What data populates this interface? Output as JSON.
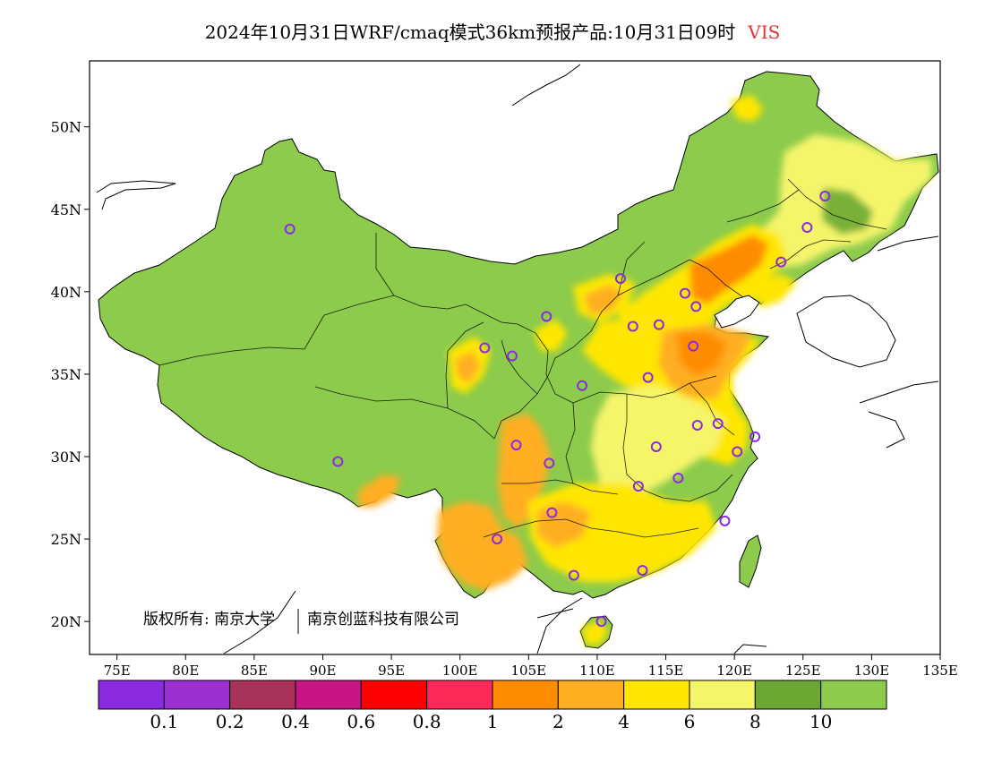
{
  "title": {
    "main": "2024年10月31日WRF/cmaq模式36km预报产品:10月31日09时",
    "variable": "VIS"
  },
  "map": {
    "lon_range": [
      73,
      135
    ],
    "lat_range": [
      18,
      54
    ],
    "lon_ticks": [
      {
        "value": 75,
        "label": "75E"
      },
      {
        "value": 80,
        "label": "80E"
      },
      {
        "value": 85,
        "label": "85E"
      },
      {
        "value": 90,
        "label": "90E"
      },
      {
        "value": 95,
        "label": "95E"
      },
      {
        "value": 100,
        "label": "100E"
      },
      {
        "value": 105,
        "label": "105E"
      },
      {
        "value": 110,
        "label": "110E"
      },
      {
        "value": 115,
        "label": "115E"
      },
      {
        "value": 120,
        "label": "120E"
      },
      {
        "value": 125,
        "label": "125E"
      },
      {
        "value": 130,
        "label": "130E"
      },
      {
        "value": 135,
        "label": "135E"
      }
    ],
    "lat_ticks": [
      {
        "value": 20,
        "label": "20N"
      },
      {
        "value": 25,
        "label": "25N"
      },
      {
        "value": 30,
        "label": "30N"
      },
      {
        "value": 35,
        "label": "35N"
      },
      {
        "value": 40,
        "label": "40N"
      },
      {
        "value": 45,
        "label": "45N"
      },
      {
        "value": 50,
        "label": "50N"
      }
    ],
    "copyright": "版权所有: 南京大学",
    "copyright_partner": "南京创蓝科技有限公司",
    "stations": [
      {
        "lon": 87.6,
        "lat": 43.8
      },
      {
        "lon": 91.1,
        "lat": 29.7
      },
      {
        "lon": 101.8,
        "lat": 36.6
      },
      {
        "lon": 103.8,
        "lat": 36.1
      },
      {
        "lon": 106.3,
        "lat": 38.5
      },
      {
        "lon": 108.9,
        "lat": 34.3
      },
      {
        "lon": 111.7,
        "lat": 40.8
      },
      {
        "lon": 112.6,
        "lat": 37.9
      },
      {
        "lon": 114.5,
        "lat": 38.0
      },
      {
        "lon": 116.4,
        "lat": 39.9
      },
      {
        "lon": 117.2,
        "lat": 39.1
      },
      {
        "lon": 117.0,
        "lat": 36.7
      },
      {
        "lon": 113.7,
        "lat": 34.8
      },
      {
        "lon": 117.3,
        "lat": 31.9
      },
      {
        "lon": 118.8,
        "lat": 32.0
      },
      {
        "lon": 121.5,
        "lat": 31.2
      },
      {
        "lon": 120.2,
        "lat": 30.3
      },
      {
        "lon": 114.3,
        "lat": 30.6
      },
      {
        "lon": 115.9,
        "lat": 28.7
      },
      {
        "lon": 113.0,
        "lat": 28.2
      },
      {
        "lon": 119.3,
        "lat": 26.1
      },
      {
        "lon": 113.3,
        "lat": 23.1
      },
      {
        "lon": 108.3,
        "lat": 22.8
      },
      {
        "lon": 110.3,
        "lat": 20.0
      },
      {
        "lon": 102.7,
        "lat": 25.0
      },
      {
        "lon": 106.7,
        "lat": 26.6
      },
      {
        "lon": 106.5,
        "lat": 29.6
      },
      {
        "lon": 104.1,
        "lat": 30.7
      },
      {
        "lon": 123.4,
        "lat": 41.8
      },
      {
        "lon": 125.3,
        "lat": 43.9
      },
      {
        "lon": 126.6,
        "lat": 45.8
      }
    ]
  },
  "legend": {
    "colors": [
      "#8a2be2",
      "#9b30d0",
      "#a8325a",
      "#c71585",
      "#ff0000",
      "#ff2a5a",
      "#ff8c00",
      "#ffae20",
      "#ffe600",
      "#f5f56a",
      "#6aa833",
      "#8ccb4c"
    ],
    "labels": [
      "0.1",
      "0.2",
      "0.4",
      "0.6",
      "0.8",
      "1",
      "2",
      "4",
      "6",
      "8",
      "10"
    ]
  },
  "colors": {
    "land": "#8ccb4c",
    "dark_green": "#6aa833",
    "light_yellow": "#f5f56a",
    "yellow": "#ffe600",
    "orange_light": "#ffae20",
    "orange": "#ff8c00",
    "station": "#8a2be2",
    "title_accent": "#e8303a"
  }
}
